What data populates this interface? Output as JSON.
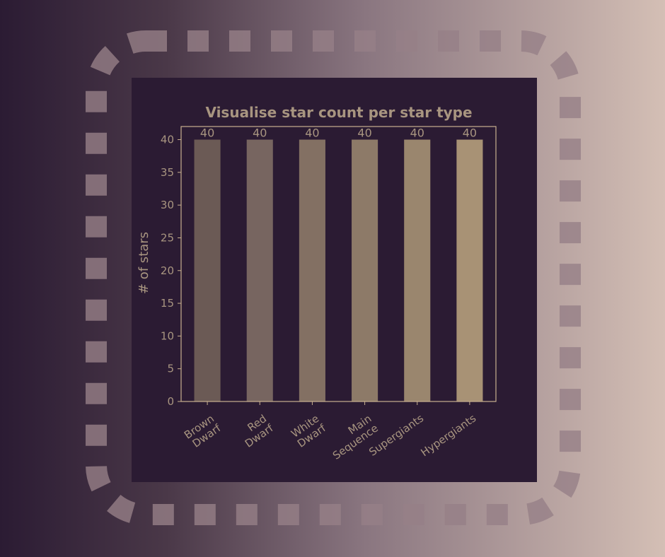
{
  "chart_data": {
    "type": "bar",
    "title": "Visualise star count per star type",
    "y_label": "# of stars",
    "categories": [
      "Brown\nDwarf",
      "Red\nDwarf",
      "White\nDwarf",
      "Main\nSequence",
      "Supergiants",
      "Hypergiants"
    ],
    "values": [
      40,
      40,
      40,
      40,
      40,
      40
    ],
    "colors": [
      "#6b5a55",
      "#776560",
      "#837063",
      "#8d7a68",
      "#9a866e",
      "#a89275"
    ],
    "ylim": [
      0,
      42
    ],
    "yticks": [
      0,
      5,
      10,
      15,
      20,
      25,
      30,
      35,
      40
    ]
  }
}
